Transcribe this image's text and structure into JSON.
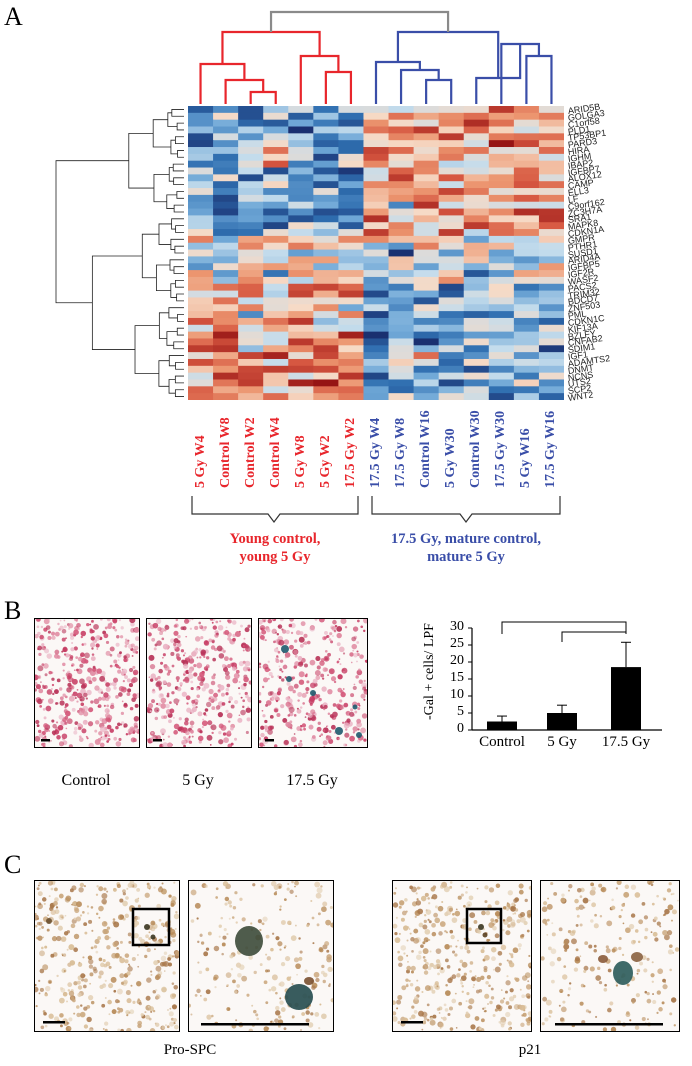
{
  "panels": {
    "a": "A",
    "b": "B",
    "c": "C"
  },
  "heatmap": {
    "columns": [
      {
        "label": "5 Gy W4",
        "group": "young"
      },
      {
        "label": "Control W8",
        "group": "young"
      },
      {
        "label": "Control W2",
        "group": "young"
      },
      {
        "label": "Control W4",
        "group": "young"
      },
      {
        "label": "5 Gy W8",
        "group": "young"
      },
      {
        "label": "5 Gy W2",
        "group": "young"
      },
      {
        "label": "17.5 Gy W2",
        "group": "young"
      },
      {
        "label": "17.5 Gy W4",
        "group": "mature"
      },
      {
        "label": "17.5 Gy W8",
        "group": "mature"
      },
      {
        "label": "Control W16",
        "group": "mature"
      },
      {
        "label": "5 Gy W30",
        "group": "mature"
      },
      {
        "label": "Control W30",
        "group": "mature"
      },
      {
        "label": "17.5 Gy W30",
        "group": "mature"
      },
      {
        "label": "5 Gy W16",
        "group": "mature"
      },
      {
        "label": "17.5 Gy W16",
        "group": "mature"
      }
    ],
    "genes": [
      "ARID5B",
      "GOLGA3",
      "C1orf58",
      "PLD1",
      "TP53BP1",
      "PARD3",
      "HIRA",
      "IGHM",
      "IBAP2",
      "IGFBP7",
      "ALOX12",
      "CAMP",
      "ELL3",
      "LF",
      "C9orf162",
      "ZC3H7A",
      "SRA1",
      "MAPK8",
      "CDKN1A",
      "GMPR",
      "PTHR1",
      "SUSD1",
      "ARID4A",
      "IGFBP5",
      "IGF2R",
      "WASF2",
      "PACS2",
      "TRIM32",
      "BDCD7",
      "ZNF503",
      "PML",
      "CDKN1C",
      "KIF13A",
      "BZLFY",
      "CNFAB2",
      "SDIM1",
      "IGF1",
      "ADAMTS2",
      "DNMT",
      "NCNS",
      "UTS2",
      "SCP2",
      "WNT2"
    ],
    "colors": {
      "young": "#e8262c",
      "mature": "#3a4ea8",
      "root": "#8a8a8a"
    }
  },
  "groups": {
    "young": "Young control,\nyoung 5 Gy",
    "mature": "17.5 Gy, mature control,\nmature 5 Gy"
  },
  "panel_b": {
    "images": [
      {
        "caption": "Control"
      },
      {
        "caption": "5 Gy"
      },
      {
        "caption": "17.5 Gy"
      }
    ]
  },
  "chart_data": {
    "type": "bar",
    "categories": [
      "Control",
      "5 Gy",
      "17.5 Gy"
    ],
    "values": [
      2.5,
      5.0,
      18.5
    ],
    "errors": [
      1.6,
      2.3,
      7.3
    ],
    "ylabel": "-Gal + cells/ LPF",
    "ylim": [
      0,
      30
    ],
    "yticks": [
      0,
      5,
      10,
      15,
      20,
      25,
      30
    ],
    "color": "#000000"
  },
  "panel_c": {
    "captions": [
      "Pro-SPC",
      "p21"
    ]
  }
}
